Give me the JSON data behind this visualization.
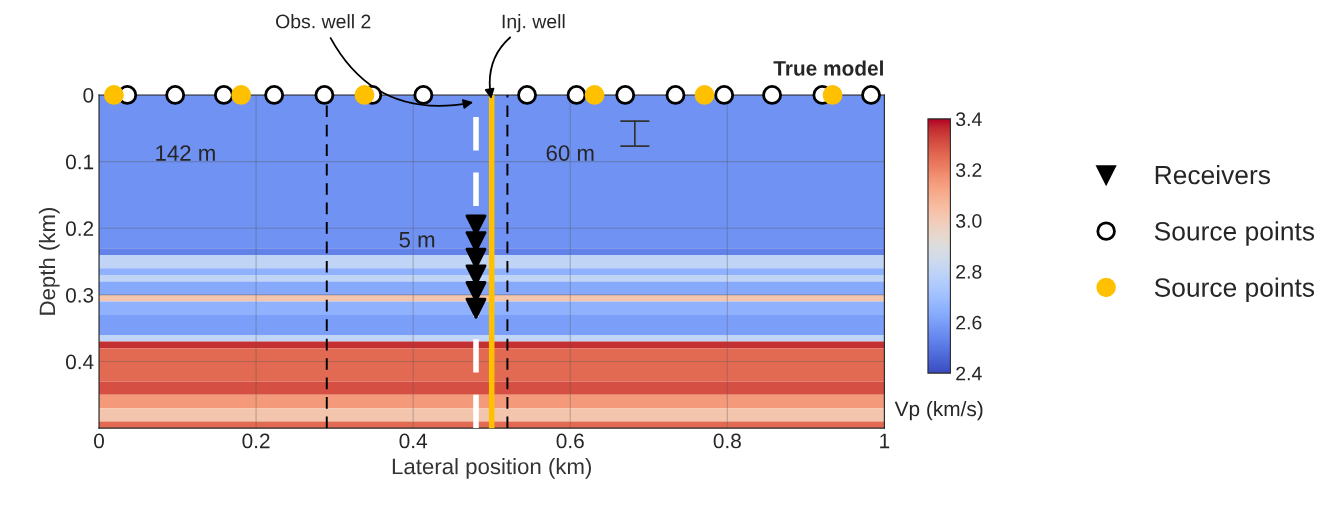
{
  "chart_data": {
    "type": "scatter",
    "title": "True model",
    "xlabel": "Lateral position (km)",
    "ylabel": "Depth (km)",
    "clabel": "Vp (km/s)",
    "clim": [
      2.4,
      3.4
    ],
    "cticks": [
      2.4,
      2.6,
      2.8,
      {
        "value": 3,
        "label": "3.0"
      },
      3.2,
      3.4
    ],
    "xlim": [
      0,
      1
    ],
    "ylim": [
      0.5,
      0
    ],
    "xticks": [
      0,
      0.2,
      0.4,
      0.6,
      0.8,
      1
    ],
    "yticks": [
      0,
      0.1,
      0.2,
      0.3,
      0.4
    ],
    "grid": true,
    "legend": "right",
    "series": [
      {
        "name": "Receivers",
        "color": "#000000",
        "marker": "triangle",
        "x": [
          0.48,
          0.48,
          0.48,
          0.48,
          0.48,
          0.48
        ],
        "values": [
          0.195,
          0.22,
          0.245,
          0.27,
          0.295,
          0.32
        ]
      },
      {
        "name": "Source points",
        "color": "#ffffff",
        "marker": "circle",
        "x": [
          0.036,
          0.097,
          0.159,
          0.223,
          0.287,
          0.348,
          0.413,
          0.545,
          0.608,
          0.67,
          0.734,
          0.796,
          0.857,
          0.921,
          0.983
        ],
        "values": [
          0,
          0,
          0,
          0,
          0,
          0,
          0,
          0,
          0,
          0,
          0,
          0,
          0,
          0,
          0
        ]
      },
      {
        "name": "Source points",
        "color": "#ffc000",
        "marker": "circle",
        "x": [
          0.019,
          0.181,
          0.338,
          0.631,
          0.771,
          0.934
        ],
        "values": [
          0,
          0,
          0,
          0,
          0,
          0
        ]
      }
    ],
    "bands": [
      {
        "axis": "y",
        "from": 0,
        "to": 0.23,
        "color": "#6f92f3"
      },
      {
        "axis": "y",
        "from": 0.23,
        "to": 0.24,
        "color": "#6282ea"
      },
      {
        "axis": "y",
        "from": 0.24,
        "to": 0.26,
        "color": "#c0d4f5"
      },
      {
        "axis": "y",
        "from": 0.26,
        "to": 0.27,
        "color": "#90b2fe"
      },
      {
        "axis": "y",
        "from": 0.27,
        "to": 0.28,
        "color": "#c0d4f5"
      },
      {
        "axis": "y",
        "from": 0.28,
        "to": 0.3,
        "color": "#86a9fc"
      },
      {
        "axis": "y",
        "from": 0.3,
        "to": 0.31,
        "color": "#f4c5ad"
      },
      {
        "axis": "y",
        "from": 0.31,
        "to": 0.33,
        "color": "#90b2fe"
      },
      {
        "axis": "y",
        "from": 0.33,
        "to": 0.36,
        "color": "#7b9ff9"
      },
      {
        "axis": "y",
        "from": 0.36,
        "to": 0.37,
        "color": "#c0d4f5"
      },
      {
        "axis": "y",
        "from": 0.37,
        "to": 0.38,
        "color": "#c43032"
      },
      {
        "axis": "y",
        "from": 0.38,
        "to": 0.43,
        "color": "#e26952"
      },
      {
        "axis": "y",
        "from": 0.43,
        "to": 0.45,
        "color": "#d55042"
      },
      {
        "axis": "y",
        "from": 0.45,
        "to": 0.47,
        "color": "#f49a7b"
      },
      {
        "axis": "y",
        "from": 0.47,
        "to": 0.49,
        "color": "#f4c5ad"
      },
      {
        "axis": "y",
        "from": 0.49,
        "to": 0.5,
        "color": "#e26952"
      }
    ],
    "ref_lines": [
      {
        "axis": "x",
        "value": 0.29,
        "color": "#000000",
        "line_style": "dashed"
      },
      {
        "axis": "x",
        "value": 0.52,
        "color": "#000000",
        "line_style": "dashed"
      },
      {
        "axis": "x",
        "value": 0.48,
        "color": "#ffffff",
        "line_style": "dashed",
        "label": "Obs. well 2"
      },
      {
        "axis": "x",
        "value": 0.5,
        "color": "#ffc000",
        "line_style": "solid",
        "label": "Inj. well"
      }
    ],
    "annotations": [
      "142 m",
      "60 m",
      "5 m"
    ]
  }
}
